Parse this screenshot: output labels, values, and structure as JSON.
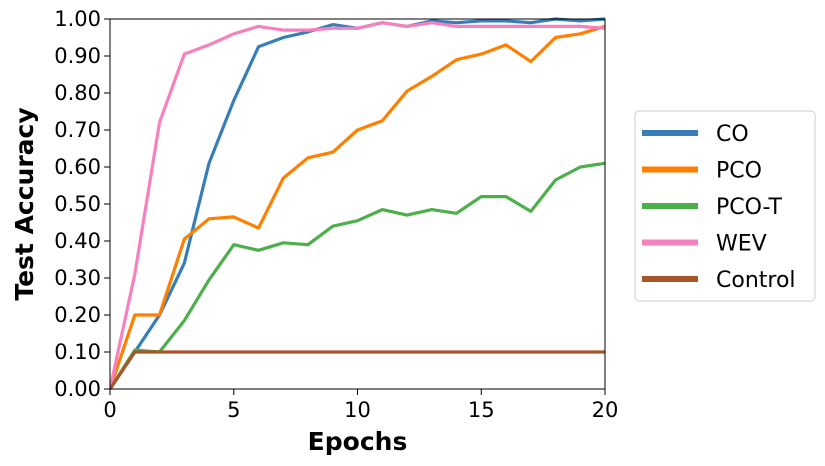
{
  "chart_data": {
    "type": "line",
    "xlabel": "Epochs",
    "ylabel": "Test Accuracy",
    "xlim": [
      0,
      20
    ],
    "ylim": [
      0,
      1.0
    ],
    "xticks": [
      "0",
      "5",
      "10",
      "15",
      "20"
    ],
    "yticks": [
      "0.00",
      "0.10",
      "0.20",
      "0.30",
      "0.40",
      "0.50",
      "0.60",
      "0.70",
      "0.80",
      "0.90",
      "1.00"
    ],
    "grid": false,
    "legend_position": "outside-right",
    "x": [
      0,
      1,
      2,
      3,
      4,
      5,
      6,
      7,
      8,
      9,
      10,
      11,
      12,
      13,
      14,
      15,
      16,
      17,
      18,
      19,
      20
    ],
    "series": [
      {
        "name": "CO",
        "color": "#377eb8",
        "values": [
          0.0,
          0.1,
          0.2,
          0.34,
          0.61,
          0.78,
          0.925,
          0.95,
          0.965,
          0.985,
          0.975,
          0.99,
          0.98,
          0.995,
          0.99,
          0.995,
          0.995,
          0.99,
          1.0,
          0.995,
          1.0
        ]
      },
      {
        "name": "PCO",
        "color": "#ff7f00",
        "values": [
          0.0,
          0.2,
          0.2,
          0.405,
          0.46,
          0.465,
          0.435,
          0.57,
          0.625,
          0.64,
          0.7,
          0.725,
          0.805,
          0.845,
          0.89,
          0.905,
          0.93,
          0.885,
          0.95,
          0.96,
          0.98
        ]
      },
      {
        "name": "PCO-T",
        "color": "#4daf4a",
        "values": [
          0.0,
          0.105,
          0.1,
          0.185,
          0.295,
          0.39,
          0.375,
          0.395,
          0.39,
          0.44,
          0.455,
          0.485,
          0.47,
          0.485,
          0.475,
          0.52,
          0.52,
          0.48,
          0.565,
          0.6,
          0.61
        ]
      },
      {
        "name": "WEV",
        "color": "#f781bf",
        "values": [
          0.0,
          0.31,
          0.72,
          0.905,
          0.93,
          0.96,
          0.98,
          0.97,
          0.97,
          0.975,
          0.975,
          0.99,
          0.98,
          0.99,
          0.98,
          0.98,
          0.98,
          0.98,
          0.98,
          0.98,
          0.975
        ]
      },
      {
        "name": "Control",
        "color": "#a65628",
        "values": [
          0.0,
          0.1,
          0.1,
          0.1,
          0.1,
          0.1,
          0.1,
          0.1,
          0.1,
          0.1,
          0.1,
          0.1,
          0.1,
          0.1,
          0.1,
          0.1,
          0.1,
          0.1,
          0.1,
          0.1,
          0.1
        ]
      }
    ]
  }
}
